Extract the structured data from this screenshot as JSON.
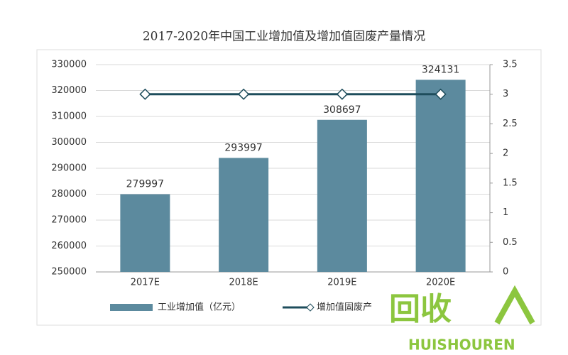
{
  "chart_data": {
    "type": "bar-line",
    "title": "2017-2020年中国工业增加值及增加值固废产量情况",
    "categories": [
      "2017E",
      "2018E",
      "2019E",
      "2020E"
    ],
    "series": [
      {
        "name": "工业增加值（亿元）",
        "type": "bar",
        "color": "#5c8a9e",
        "values": [
          279997,
          293997,
          308697,
          324131
        ]
      },
      {
        "name": "增加值固废产",
        "type": "line",
        "axis": "y2",
        "color": "#1e4d5c",
        "values": [
          3,
          3,
          3,
          3
        ]
      }
    ],
    "ylim": [
      250000,
      330000
    ],
    "yticks": [
      250000,
      260000,
      270000,
      280000,
      290000,
      300000,
      310000,
      320000,
      330000
    ],
    "y2lim": [
      0,
      3.5
    ],
    "y2ticks": [
      0,
      0.5,
      1,
      1.5,
      2,
      2.5,
      3,
      3.5
    ],
    "grid": true,
    "legend": "bottom"
  },
  "watermark": {
    "text": "回收",
    "subtext": "HUISHOUREN"
  }
}
